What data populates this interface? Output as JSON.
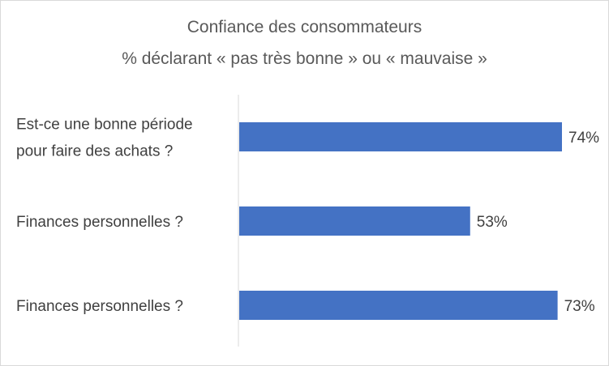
{
  "chart_data": {
    "type": "bar",
    "orientation": "horizontal",
    "title": "Confiance des consommateurs",
    "subtitle": "% déclarant « pas très bonne » ou « mauvaise »",
    "categories": [
      [
        "Est-ce une bonne période",
        "pour faire des achats ?"
      ],
      [
        "Finances personnelles ?"
      ],
      [
        "Finances personnelles ?"
      ]
    ],
    "values": [
      74,
      53,
      73
    ],
    "value_labels": [
      "74%",
      "53%",
      "73%"
    ],
    "xlim": [
      0,
      74
    ],
    "grid": false,
    "legend": "none",
    "bar_color": "#4472C4"
  }
}
